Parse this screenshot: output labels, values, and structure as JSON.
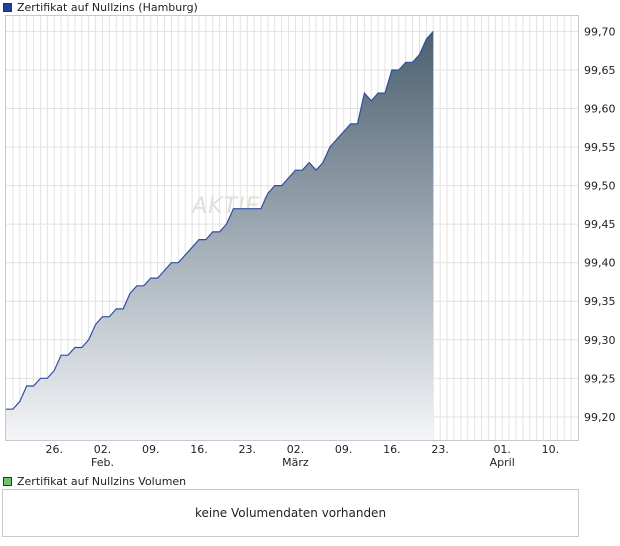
{
  "price_panel": {
    "legend_label": "Zertifikat auf Nullzins (Hamburg)",
    "legend_color": "#1f3f9a"
  },
  "volume_panel": {
    "legend_label": "Zertifikat auf Nullzins Volumen",
    "legend_color": "#6cc46c",
    "empty_message": "keine Volumendaten vorhanden"
  },
  "watermark": "AKTIEN",
  "chart_data": {
    "type": "area",
    "ylim": [
      99.17,
      99.72
    ],
    "y_ticks": [
      "99,20",
      "99,25",
      "99,30",
      "99,35",
      "99,40",
      "99,45",
      "99,50",
      "99,55",
      "99,60",
      "99,65",
      "99,70"
    ],
    "x_ticks": [
      {
        "day": 10,
        "label": "26.",
        "sublabel": ""
      },
      {
        "day": 17,
        "label": "02.",
        "sublabel": "Feb."
      },
      {
        "day": 24,
        "label": "09.",
        "sublabel": ""
      },
      {
        "day": 31,
        "label": "16.",
        "sublabel": ""
      },
      {
        "day": 38,
        "label": "23.",
        "sublabel": ""
      },
      {
        "day": 45,
        "label": "02.",
        "sublabel": "März"
      },
      {
        "day": 52,
        "label": "09.",
        "sublabel": ""
      },
      {
        "day": 59,
        "label": "16.",
        "sublabel": ""
      },
      {
        "day": 66,
        "label": "23.",
        "sublabel": ""
      },
      {
        "day": 75,
        "label": "01.",
        "sublabel": "April"
      },
      {
        "day": 82,
        "label": "10.",
        "sublabel": ""
      }
    ],
    "series": [
      {
        "line_color": "#2f4fa0",
        "fill_top": "#4b6070",
        "fill_bottom": "#f4f5f8",
        "points": [
          [
            3,
            99.21
          ],
          [
            4,
            99.21
          ],
          [
            5,
            99.22
          ],
          [
            6,
            99.24
          ],
          [
            7,
            99.24
          ],
          [
            8,
            99.25
          ],
          [
            9,
            99.25
          ],
          [
            10,
            99.26
          ],
          [
            11,
            99.28
          ],
          [
            12,
            99.28
          ],
          [
            13,
            99.29
          ],
          [
            14,
            99.29
          ],
          [
            15,
            99.3
          ],
          [
            16,
            99.32
          ],
          [
            17,
            99.33
          ],
          [
            18,
            99.33
          ],
          [
            19,
            99.34
          ],
          [
            20,
            99.34
          ],
          [
            21,
            99.36
          ],
          [
            22,
            99.37
          ],
          [
            23,
            99.37
          ],
          [
            24,
            99.38
          ],
          [
            25,
            99.38
          ],
          [
            26,
            99.39
          ],
          [
            27,
            99.4
          ],
          [
            28,
            99.4
          ],
          [
            29,
            99.41
          ],
          [
            30,
            99.42
          ],
          [
            31,
            99.43
          ],
          [
            32,
            99.43
          ],
          [
            33,
            99.44
          ],
          [
            34,
            99.44
          ],
          [
            35,
            99.45
          ],
          [
            36,
            99.47
          ],
          [
            37,
            99.47
          ],
          [
            38,
            99.47
          ],
          [
            39,
            99.47
          ],
          [
            40,
            99.47
          ],
          [
            41,
            99.49
          ],
          [
            42,
            99.5
          ],
          [
            43,
            99.5
          ],
          [
            44,
            99.51
          ],
          [
            45,
            99.52
          ],
          [
            46,
            99.52
          ],
          [
            47,
            99.53
          ],
          [
            48,
            99.52
          ],
          [
            49,
            99.53
          ],
          [
            50,
            99.55
          ],
          [
            51,
            99.56
          ],
          [
            52,
            99.57
          ],
          [
            53,
            99.58
          ],
          [
            54,
            99.58
          ],
          [
            55,
            99.62
          ],
          [
            56,
            99.61
          ],
          [
            57,
            99.62
          ],
          [
            58,
            99.62
          ],
          [
            59,
            99.65
          ],
          [
            60,
            99.65
          ],
          [
            61,
            99.66
          ],
          [
            62,
            99.66
          ],
          [
            63,
            99.67
          ],
          [
            64,
            99.69
          ],
          [
            65,
            99.7
          ]
        ]
      }
    ],
    "grid": true
  }
}
